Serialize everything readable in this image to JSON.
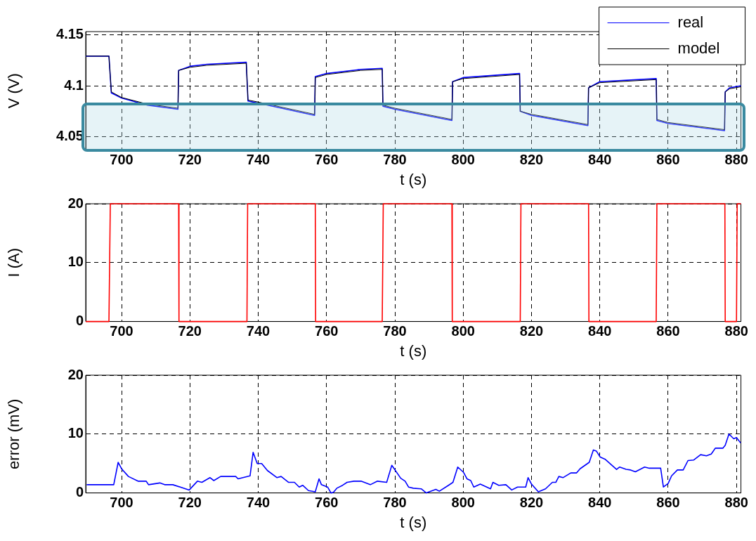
{
  "chart_data": [
    {
      "type": "line",
      "xlabel": "t (s)",
      "ylabel": "V (V)",
      "xlim": [
        689.5,
        881.3
      ],
      "xticks": [
        700,
        720,
        740,
        760,
        780,
        800,
        820,
        840,
        860,
        880
      ],
      "ylim": [
        4.037,
        4.153
      ],
      "yticks": [
        4.05,
        4.1,
        4.15
      ],
      "grid": true,
      "legend": "top right",
      "marker": "none",
      "line_style": "solid",
      "series": [
        {
          "name": "real",
          "color": "#0000ff",
          "x": [
            689.5,
            696.3,
            697,
            700,
            707.6,
            716.5,
            716.7,
            720,
            725,
            736.5,
            737,
            740,
            756.5,
            756.7,
            760,
            770,
            776.3,
            776.5,
            780,
            796.7,
            796.9,
            800,
            816.5,
            816.7,
            820,
            836.5,
            836.7,
            840,
            856.5,
            856.7,
            860,
            876.5,
            876.7,
            878,
            881.3
          ],
          "values": [
            4.129,
            4.129,
            4.093,
            4.088,
            4.081,
            4.077,
            4.115,
            4.119,
            4.121,
            4.123,
            4.085,
            4.083,
            4.071,
            4.109,
            4.112,
            4.116,
            4.117,
            4.08,
            4.077,
            4.066,
            4.104,
            4.108,
            4.112,
            4.075,
            4.071,
            4.061,
            4.098,
            4.104,
            4.107,
            4.066,
            4.063,
            4.056,
            4.094,
            4.098,
            4.1
          ]
        },
        {
          "name": "model",
          "color": "#000000",
          "x": [
            689.5,
            696.3,
            697,
            700,
            707.6,
            716.5,
            716.7,
            720,
            725,
            736.5,
            737,
            740,
            756.5,
            756.7,
            760,
            770,
            776.3,
            776.5,
            780,
            796.7,
            796.9,
            800,
            816.5,
            816.7,
            820,
            836.5,
            836.7,
            840,
            856.5,
            856.7,
            860,
            876.5,
            876.7,
            878,
            881.3
          ],
          "values": [
            4.129,
            4.129,
            4.094,
            4.0885,
            4.082,
            4.078,
            4.115,
            4.118,
            4.12,
            4.122,
            4.086,
            4.084,
            4.072,
            4.108,
            4.111,
            4.115,
            4.116,
            4.081,
            4.078,
            4.067,
            4.104,
            4.107,
            4.111,
            4.075,
            4.072,
            4.062,
            4.098,
            4.103,
            4.106,
            4.067,
            4.064,
            4.057,
            4.094,
            4.097,
            4.099
          ]
        }
      ]
    },
    {
      "type": "line",
      "xlabel": "t (s)",
      "ylabel": "I (A)",
      "xlim": [
        689.5,
        881.3
      ],
      "xticks": [
        700,
        720,
        740,
        760,
        780,
        800,
        820,
        840,
        860,
        880
      ],
      "ylim": [
        0,
        20
      ],
      "yticks": [
        0,
        10,
        20
      ],
      "grid": true,
      "marker": "none",
      "line_style": "solid",
      "series": [
        {
          "color": "#ff0000",
          "x": [
            689.5,
            696.3,
            696.7,
            716.7,
            716.8,
            736.7,
            736.9,
            756.7,
            756.8,
            776.3,
            776.6,
            796.7,
            796.8,
            816.7,
            816.9,
            836.7,
            836.8,
            856.5,
            856.7,
            876.6,
            876.7,
            880.0,
            880.2,
            881.3
          ],
          "values": [
            0,
            0,
            20,
            20,
            0,
            0,
            20,
            20,
            0,
            0,
            20,
            20,
            0,
            0,
            20,
            20,
            0,
            0,
            20,
            20,
            0,
            0,
            20,
            20
          ]
        }
      ]
    },
    {
      "type": "line",
      "xlabel": "t (s)",
      "ylabel": "error (mV)",
      "xlim": [
        689.5,
        881.3
      ],
      "xticks": [
        700,
        720,
        740,
        760,
        780,
        800,
        820,
        840,
        860,
        880
      ],
      "ylim": [
        0,
        20
      ],
      "yticks": [
        0,
        10,
        20
      ],
      "grid": true,
      "marker": "none",
      "line_style": "solid",
      "series": [
        {
          "color": "#0000ff",
          "x": [
            689.8,
            697.7,
            699,
            700,
            702,
            704.8,
            707.2,
            707.9,
            711.2,
            712.6,
            715,
            719.8,
            722.2,
            723.5,
            725.9,
            727,
            729,
            733.4,
            734.1,
            737.6,
            738.5,
            739.7,
            741,
            742.7,
            745.5,
            746.7,
            748.9,
            750.6,
            752,
            753,
            754.7,
            756.7,
            757.8,
            758.5,
            760.3,
            761.3,
            762,
            763,
            764.7,
            766,
            768,
            770.1,
            772.8,
            774.9,
            777.6,
            779.1,
            781.7,
            783,
            784,
            785.4,
            787.7,
            789.2,
            792,
            793,
            795.7,
            797,
            798.4,
            800.1,
            801.1,
            802.2,
            803.1,
            805,
            808,
            808.7,
            810.4,
            812.5,
            814.2,
            815.9,
            818.3,
            819,
            820,
            822,
            824.1,
            826.1,
            827.1,
            828,
            829.2,
            831.5,
            833.2,
            834.2,
            836.9,
            838.1,
            839,
            840.1,
            841.6,
            844.9,
            845.8,
            847.7,
            849,
            850.4,
            853.1,
            854.5,
            857.8,
            858.6,
            860,
            861,
            862.7,
            864.4,
            865.8,
            867.5,
            869.5,
            871.2,
            872.6,
            873.8,
            876,
            876.7,
            877.8,
            879.2,
            880,
            881.2
          ],
          "values": [
            1.4,
            1.4,
            5.2,
            4.1,
            2.8,
            2.0,
            2.0,
            1.4,
            1.7,
            1.4,
            1.4,
            0.5,
            2.0,
            1.8,
            2.6,
            2.1,
            2.8,
            2.8,
            2.4,
            2.9,
            6.9,
            5.0,
            5.0,
            3.8,
            2.6,
            2.8,
            1.8,
            1.8,
            1.0,
            1.3,
            0.4,
            0.2,
            2.4,
            1.4,
            1.0,
            0.0,
            0.1,
            0.8,
            1.3,
            1.8,
            2.0,
            2.0,
            1.4,
            2.0,
            1.8,
            4.7,
            2.5,
            2.0,
            1.0,
            0.8,
            0.7,
            0.0,
            0.6,
            0.3,
            1.3,
            1.8,
            4.4,
            3.5,
            2.4,
            2.1,
            1.0,
            1.5,
            0.7,
            1.8,
            1.3,
            1.4,
            0.5,
            1.0,
            1.0,
            2.6,
            1.5,
            0.2,
            0.7,
            1.8,
            1.8,
            2.8,
            2.6,
            3.4,
            3.4,
            4.1,
            5.2,
            7.3,
            7.1,
            6.1,
            5.7,
            4.0,
            4.4,
            4.0,
            3.9,
            3.6,
            4.4,
            4.2,
            4.2,
            1.0,
            1.6,
            2.9,
            3.9,
            3.9,
            5.5,
            5.6,
            6.5,
            6.3,
            6.6,
            7.6,
            7.6,
            8.1,
            10.0,
            9.2,
            9.4,
            8.5
          ]
        }
      ]
    }
  ]
}
